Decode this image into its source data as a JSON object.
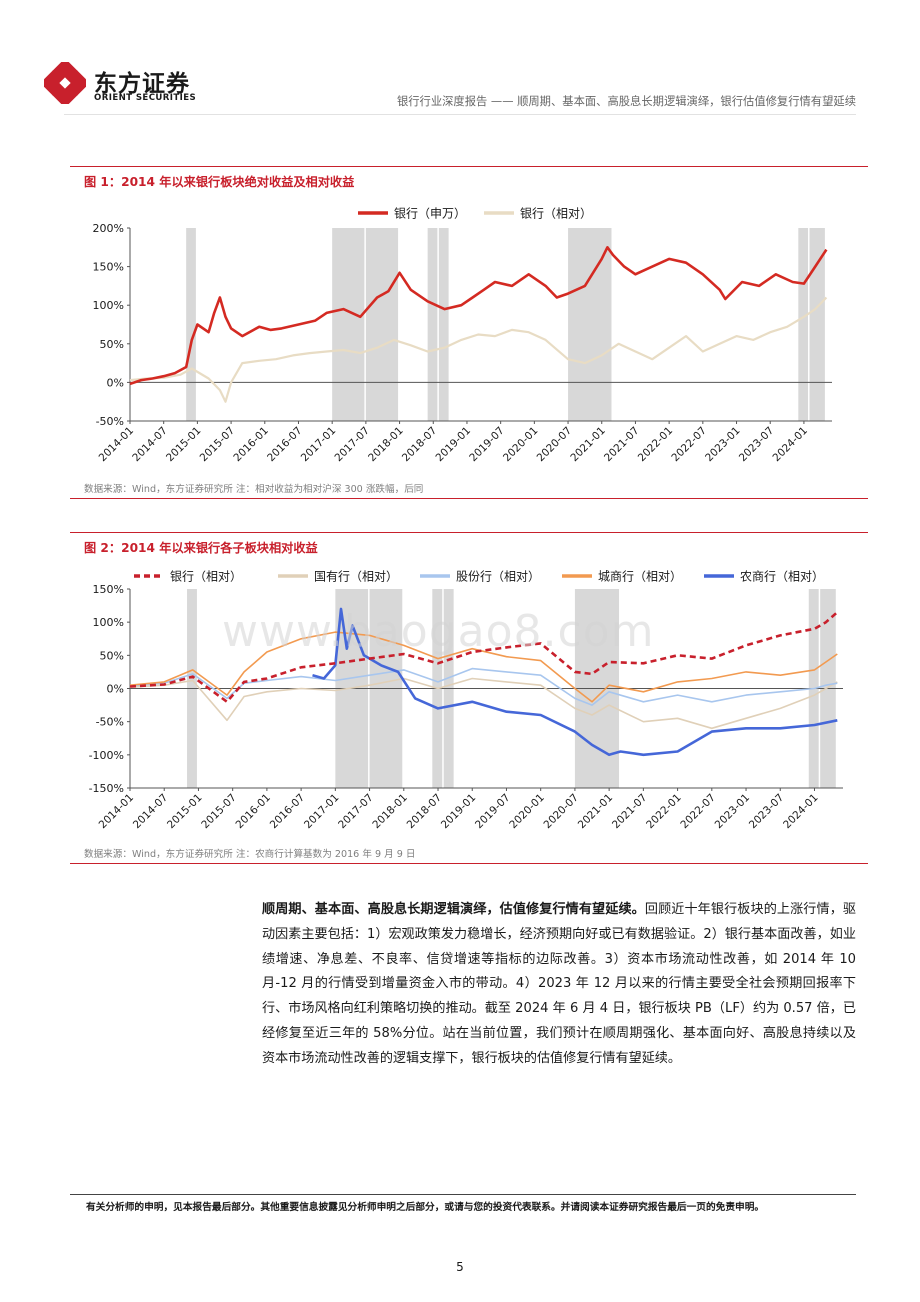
{
  "header": {
    "logo_cn": "东方证券",
    "logo_en": "ORIENT SECURITIES",
    "report_title": "银行行业深度报告 —— 顺周期、基本面、高股息长期逻辑演绎，银行估值修复行情有望延续"
  },
  "colors": {
    "brand_red": "#c8202c",
    "bank_abs": "#d42a22",
    "bank_rel": "#e8dcc4",
    "state_owned": "#e0d0b8",
    "joint_stock": "#a8c6ee",
    "city": "#f29a50",
    "rural": "#4567d8",
    "shade": "#d8d8d8"
  },
  "figure1": {
    "title": "图 1：2014 年以来银行板块绝对收益及相对收益",
    "source": "数据来源：Wind，东方证券研究所 注：相对收益为相对沪深 300 涨跌幅，后同",
    "chart_data": {
      "type": "line",
      "legend_position": "top",
      "y_ticks": [
        "200%",
        "150%",
        "100%",
        "50%",
        "0%",
        "-50%"
      ],
      "ylim": [
        -50,
        200
      ],
      "x_ticks": [
        "2014-01",
        "2014-07",
        "2015-01",
        "2015-07",
        "2016-01",
        "2016-07",
        "2017-01",
        "2017-07",
        "2018-01",
        "2018-07",
        "2019-01",
        "2019-07",
        "2020-01",
        "2020-07",
        "2021-01",
        "2021-07",
        "2022-01",
        "2022-07",
        "2023-01",
        "2023-07",
        "2024-01"
      ],
      "shaded_periods": [
        [
          "2014-11",
          "2015-01"
        ],
        [
          "2017-01",
          "2017-07"
        ],
        [
          "2017-07",
          "2018-01"
        ],
        [
          "2018-06",
          "2018-08"
        ],
        [
          "2018-08",
          "2018-10"
        ],
        [
          "2020-07",
          "2021-03"
        ],
        [
          "2023-12",
          "2024-02"
        ],
        [
          "2024-02",
          "2024-05"
        ]
      ],
      "series": [
        {
          "name": "银行（申万）",
          "style": "solid-thick",
          "color": "#d42a22",
          "x": [
            "2014-01",
            "2014-03",
            "2014-05",
            "2014-07",
            "2014-09",
            "2014-11",
            "2014-12",
            "2015-01",
            "2015-03",
            "2015-04",
            "2015-05",
            "2015-06",
            "2015-07",
            "2015-09",
            "2015-12",
            "2016-02",
            "2016-04",
            "2016-07",
            "2016-10",
            "2016-12",
            "2017-03",
            "2017-06",
            "2017-09",
            "2017-11",
            "2018-01",
            "2018-03",
            "2018-06",
            "2018-09",
            "2018-12",
            "2019-02",
            "2019-04",
            "2019-06",
            "2019-09",
            "2019-12",
            "2020-03",
            "2020-05",
            "2020-07",
            "2020-10",
            "2021-01",
            "2021-02",
            "2021-03",
            "2021-05",
            "2021-07",
            "2021-10",
            "2022-01",
            "2022-04",
            "2022-07",
            "2022-10",
            "2022-11",
            "2023-02",
            "2023-05",
            "2023-08",
            "2023-11",
            "2024-01",
            "2024-03",
            "2024-05"
          ],
          "y": [
            -2,
            3,
            5,
            8,
            12,
            20,
            55,
            75,
            65,
            90,
            110,
            85,
            70,
            60,
            72,
            68,
            70,
            75,
            80,
            90,
            95,
            85,
            110,
            118,
            142,
            120,
            105,
            95,
            100,
            110,
            120,
            130,
            125,
            140,
            125,
            110,
            115,
            125,
            160,
            175,
            165,
            150,
            140,
            150,
            160,
            155,
            140,
            120,
            108,
            130,
            125,
            140,
            130,
            128,
            150,
            172
          ]
        },
        {
          "name": "银行（相对）",
          "style": "solid-thin",
          "color": "#e8dcc4",
          "x": [
            "2014-01",
            "2014-04",
            "2014-07",
            "2014-10",
            "2014-12",
            "2015-03",
            "2015-05",
            "2015-06",
            "2015-07",
            "2015-09",
            "2015-12",
            "2016-03",
            "2016-06",
            "2016-09",
            "2016-12",
            "2017-03",
            "2017-06",
            "2017-09",
            "2017-12",
            "2018-03",
            "2018-06",
            "2018-09",
            "2018-12",
            "2019-03",
            "2019-06",
            "2019-09",
            "2019-12",
            "2020-03",
            "2020-07",
            "2020-10",
            "2021-01",
            "2021-04",
            "2021-07",
            "2021-10",
            "2022-01",
            "2022-04",
            "2022-07",
            "2022-10",
            "2023-01",
            "2023-04",
            "2023-07",
            "2023-10",
            "2024-01",
            "2024-03",
            "2024-05"
          ],
          "y": [
            3,
            5,
            6,
            10,
            18,
            5,
            -10,
            -25,
            0,
            25,
            28,
            30,
            35,
            38,
            40,
            42,
            38,
            45,
            55,
            48,
            40,
            45,
            55,
            62,
            60,
            68,
            65,
            55,
            30,
            25,
            35,
            50,
            40,
            30,
            45,
            60,
            40,
            50,
            60,
            55,
            65,
            72,
            85,
            95,
            110
          ]
        }
      ]
    }
  },
  "figure2": {
    "title": "图 2：2014 年以来银行各子板块相对收益",
    "source": "数据来源：Wind，东方证券研究所 注：农商行计算基数为 2016 年 9 月 9 日",
    "chart_data": {
      "type": "line",
      "legend_position": "top",
      "y_ticks": [
        "150%",
        "100%",
        "50%",
        "0%",
        "-50%",
        "-100%",
        "-150%"
      ],
      "ylim": [
        -150,
        150
      ],
      "x_ticks": [
        "2014-01",
        "2014-07",
        "2015-01",
        "2015-07",
        "2016-01",
        "2016-07",
        "2017-01",
        "2017-07",
        "2018-01",
        "2018-07",
        "2019-01",
        "2019-07",
        "2020-01",
        "2020-07",
        "2021-01",
        "2021-07",
        "2022-01",
        "2022-07",
        "2023-01",
        "2023-07",
        "2024-01"
      ],
      "shaded_periods": [
        [
          "2014-11",
          "2015-01"
        ],
        [
          "2017-01",
          "2017-07"
        ],
        [
          "2017-07",
          "2018-01"
        ],
        [
          "2018-06",
          "2018-08"
        ],
        [
          "2018-08",
          "2018-10"
        ],
        [
          "2020-07",
          "2021-03"
        ],
        [
          "2023-12",
          "2024-02"
        ],
        [
          "2024-02",
          "2024-05"
        ]
      ],
      "series": [
        {
          "name": "银行（相对）",
          "style": "dashed",
          "color": "#c8202c",
          "x": [
            "2014-01",
            "2014-07",
            "2014-12",
            "2015-06",
            "2015-09",
            "2016-01",
            "2016-07",
            "2017-01",
            "2017-07",
            "2018-01",
            "2018-07",
            "2019-01",
            "2019-07",
            "2020-01",
            "2020-07",
            "2020-10",
            "2021-01",
            "2021-07",
            "2022-01",
            "2022-07",
            "2023-01",
            "2023-07",
            "2024-01",
            "2024-03",
            "2024-05"
          ],
          "y": [
            3,
            6,
            18,
            -20,
            10,
            15,
            32,
            38,
            45,
            52,
            38,
            55,
            62,
            68,
            25,
            22,
            40,
            38,
            50,
            45,
            65,
            80,
            90,
            100,
            115
          ]
        },
        {
          "name": "国有行（相对）",
          "style": "solid",
          "color": "#e0d0b8",
          "x": [
            "2014-01",
            "2014-07",
            "2014-12",
            "2015-06",
            "2015-09",
            "2016-01",
            "2016-07",
            "2017-01",
            "2017-07",
            "2018-01",
            "2018-07",
            "2019-01",
            "2019-07",
            "2020-01",
            "2020-07",
            "2020-10",
            "2021-01",
            "2021-07",
            "2022-01",
            "2022-07",
            "2023-01",
            "2023-07",
            "2024-01",
            "2024-03",
            "2024-05"
          ],
          "y": [
            2,
            5,
            12,
            -48,
            -12,
            -5,
            0,
            -3,
            5,
            15,
            0,
            15,
            10,
            5,
            -30,
            -40,
            -25,
            -50,
            -45,
            -60,
            -45,
            -30,
            -10,
            0,
            10
          ]
        },
        {
          "name": "股份行（相对）",
          "style": "solid",
          "color": "#a8c6ee",
          "x": [
            "2014-01",
            "2014-07",
            "2014-12",
            "2015-06",
            "2015-09",
            "2016-01",
            "2016-07",
            "2017-01",
            "2017-07",
            "2018-01",
            "2018-07",
            "2019-01",
            "2019-07",
            "2020-01",
            "2020-07",
            "2020-10",
            "2021-01",
            "2021-07",
            "2022-01",
            "2022-07",
            "2023-01",
            "2023-07",
            "2024-01",
            "2024-03",
            "2024-05"
          ],
          "y": [
            4,
            8,
            22,
            -15,
            8,
            12,
            18,
            12,
            20,
            28,
            10,
            30,
            25,
            20,
            -15,
            -25,
            -5,
            -20,
            -10,
            -20,
            -10,
            -5,
            0,
            5,
            8
          ]
        },
        {
          "name": "城商行（相对）",
          "style": "solid",
          "color": "#f29a50",
          "x": [
            "2014-01",
            "2014-07",
            "2014-12",
            "2015-06",
            "2015-09",
            "2016-01",
            "2016-07",
            "2017-01",
            "2017-07",
            "2018-01",
            "2018-07",
            "2019-01",
            "2019-07",
            "2020-01",
            "2020-07",
            "2020-10",
            "2021-01",
            "2021-07",
            "2022-01",
            "2022-07",
            "2023-01",
            "2023-07",
            "2024-01",
            "2024-03",
            "2024-05"
          ],
          "y": [
            5,
            10,
            28,
            -10,
            25,
            55,
            75,
            85,
            80,
            65,
            45,
            60,
            48,
            42,
            0,
            -20,
            5,
            -5,
            10,
            15,
            25,
            20,
            28,
            40,
            52
          ]
        },
        {
          "name": "农商行（相对）",
          "style": "solid-thick",
          "color": "#4567d8",
          "x": [
            "2016-09",
            "2016-11",
            "2017-01",
            "2017-02",
            "2017-03",
            "2017-04",
            "2017-06",
            "2017-09",
            "2017-12",
            "2018-03",
            "2018-07",
            "2019-01",
            "2019-07",
            "2020-01",
            "2020-07",
            "2020-10",
            "2021-01",
            "2021-03",
            "2021-07",
            "2022-01",
            "2022-07",
            "2023-01",
            "2023-07",
            "2024-01",
            "2024-05"
          ],
          "y": [
            20,
            15,
            35,
            120,
            60,
            95,
            50,
            35,
            25,
            -15,
            -30,
            -20,
            -35,
            -40,
            -65,
            -85,
            -100,
            -95,
            -100,
            -95,
            -65,
            -60,
            -60,
            -55,
            -48
          ]
        }
      ]
    }
  },
  "body": {
    "lead": "顺周期、基本面、高股息长期逻辑演绎，估值修复行情有望延续。",
    "text": "回顾近十年银行板块的上涨行情，驱动因素主要包括：1）宏观政策发力稳增长，经济预期向好或已有数据验证。2）银行基本面改善，如业绩增速、净息差、不良率、信贷增速等指标的边际改善。3）资本市场流动性改善，如 2014 年 10 月-12 月的行情受到增量资金入市的带动。4）2023 年 12 月以来的行情主要受全社会预期回报率下行、市场风格向红利策略切换的推动。截至 2024 年 6 月 4 日，银行板块 PB（LF）约为 0.57 倍，已经修复至近三年的 58%分位。站在当前位置，我们预计在顺周期强化、基本面向好、高股息持续以及资本市场流动性改善的逻辑支撑下，银行板块的估值修复行情有望延续。"
  },
  "watermark": "www.baogao8.com",
  "footer": {
    "disclaimer": "有关分析师的申明，见本报告最后部分。其他重要信息披露见分析师申明之后部分，或请与您的投资代表联系。并请阅读本证券研究报告最后一页的免责申明。",
    "page_number": "5"
  }
}
